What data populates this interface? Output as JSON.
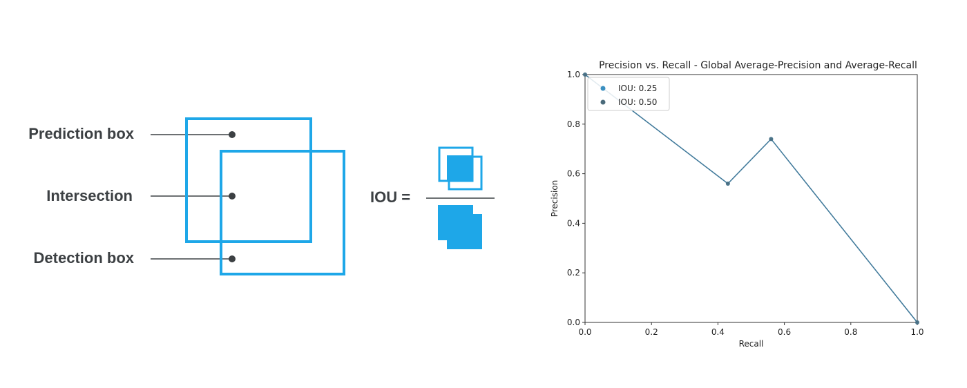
{
  "diagram": {
    "labels": {
      "prediction": "Prediction box",
      "intersection": "Intersection",
      "detection": "Detection box"
    },
    "iou_label": "IOU =",
    "box_color": "#1ea7e8",
    "text_color": "#3c4043"
  },
  "chart_data": {
    "type": "line",
    "title": "Precision vs. Recall - Global Average-Precision and Average-Recall",
    "xlabel": "Recall",
    "ylabel": "Precision",
    "xlim": [
      0.0,
      1.0
    ],
    "ylim": [
      0.0,
      1.0
    ],
    "xticks": [
      "0.0",
      "0.2",
      "0.4",
      "0.6",
      "0.8",
      "1.0"
    ],
    "yticks": [
      "0.0",
      "0.2",
      "0.4",
      "0.6",
      "0.8",
      "1.0"
    ],
    "grid": false,
    "legend_position": "top-left",
    "series": [
      {
        "name": "IOU: 0.25",
        "color": "#3a8fc0",
        "x": [
          0.0,
          0.43,
          0.56,
          1.0
        ],
        "y": [
          1.0,
          0.56,
          0.74,
          0.0
        ]
      },
      {
        "name": "IOU: 0.50",
        "color": "#4a6a7a",
        "x": [
          0.0,
          0.43,
          0.56,
          1.0
        ],
        "y": [
          1.0,
          0.56,
          0.74,
          0.0
        ]
      }
    ]
  }
}
